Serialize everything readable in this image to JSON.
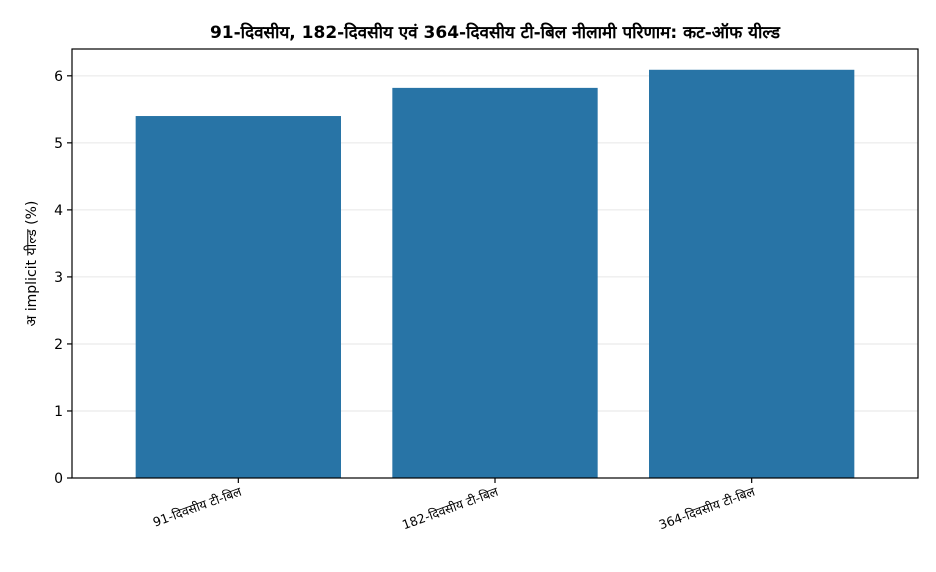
{
  "chart_data": {
    "type": "bar",
    "title": "91-दिवसीय, 182-दिवसीय एवं 364-दिवसीय टी-बिल नीलामी परिणाम: कट-ऑफ यील्ड",
    "xlabel": "",
    "ylabel": "अ implicit यील्ड (%)",
    "categories": [
      "91-दिवसीय टी-बिल",
      "182-दिवसीय टी-बिल",
      "364-दिवसीय टी-बिल"
    ],
    "values": [
      5.4,
      5.82,
      6.09
    ],
    "ylim": [
      0,
      6.4
    ],
    "yticks": [
      0,
      1,
      2,
      3,
      4,
      5,
      6
    ],
    "grid": true,
    "bar_color": "#2874a6"
  }
}
